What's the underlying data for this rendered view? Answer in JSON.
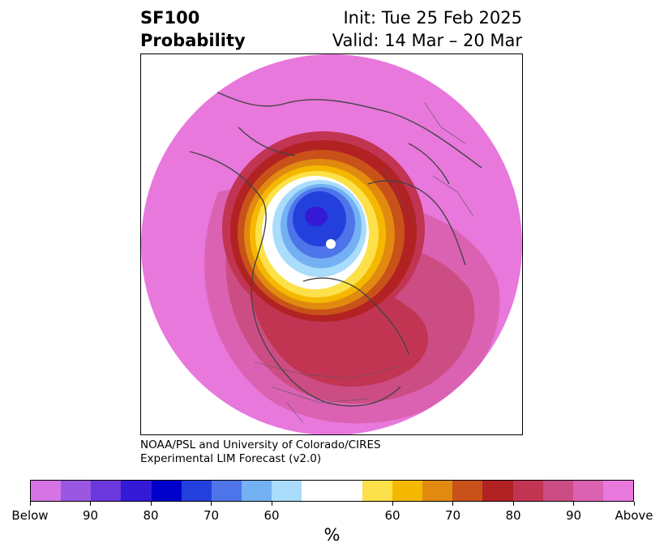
{
  "header": {
    "variable": "SF100",
    "product": "Probability",
    "init": "Init: Tue 25 Feb 2025",
    "valid": "Valid: 14 Mar – 20 Mar"
  },
  "credits": {
    "line1": "NOAA/PSL and University of Colorado/CIRES",
    "line2": "Experimental LIM Forecast (v2.0)"
  },
  "colorbar": {
    "colors": [
      "#d674e6",
      "#9a57e2",
      "#6a38dc",
      "#3419d6",
      "#0000cd",
      "#2440dc",
      "#4e74ea",
      "#74b0f4",
      "#aadcfb",
      "#ffffff",
      "#ffffff",
      "#fde14a",
      "#f5b800",
      "#e08a10",
      "#c8521a",
      "#b22222",
      "#c13553",
      "#cc4d83",
      "#db62b2",
      "#e878dc"
    ],
    "tick_labels": [
      "Below",
      "90",
      "80",
      "70",
      "60",
      "60",
      "70",
      "80",
      "90",
      "Above"
    ],
    "units": "%"
  },
  "map": {
    "projection": "north-polar-stereographic",
    "region": "Northern Hemisphere (North America at bottom)",
    "field": "Probability of below/above-normal 100-hPa streamfunction",
    "features": [
      {
        "name": "below-normal-core",
        "description": "strong below-normal center over Siberian Arctic",
        "color": "#3419d6"
      },
      {
        "name": "above-normal-ring",
        "description": "above-normal probabilities encircle the domain",
        "color": "#e878dc"
      }
    ]
  }
}
